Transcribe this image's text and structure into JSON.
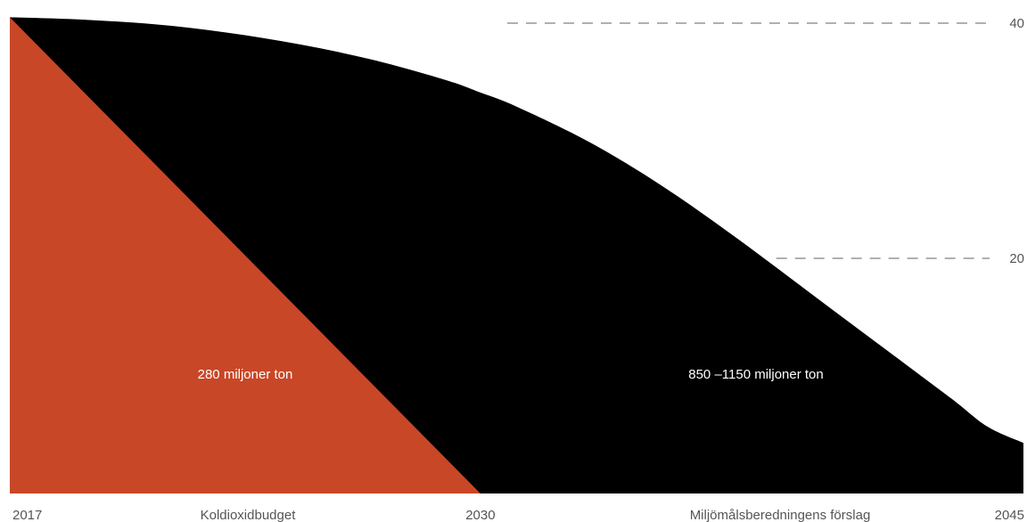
{
  "chart_data": {
    "type": "area",
    "title": "",
    "xlabel": "",
    "ylabel": "",
    "xlim": [
      2017,
      2045
    ],
    "ylim": [
      0,
      42
    ],
    "x_ticks": [
      {
        "value": 2017,
        "label": "2017"
      },
      {
        "value": 2030,
        "label": "2030"
      },
      {
        "value": 2045,
        "label": "2045"
      }
    ],
    "y_ticks": [
      {
        "value": 40,
        "label": "40"
      },
      {
        "value": 20,
        "label": "20"
      }
    ],
    "grid": "dashed reference lines at y ticks",
    "series": [
      {
        "name": "Miljömålsberedningens förslag",
        "color": "#000000",
        "x": [
          2017,
          2019,
          2021,
          2023,
          2025,
          2027,
          2029,
          2030,
          2031,
          2033,
          2035,
          2037,
          2039,
          2041,
          2043,
          2044,
          2045
        ],
        "y": [
          40.5,
          40.3,
          39.9,
          39.2,
          38.2,
          36.9,
          35.2,
          34.1,
          32.9,
          29.9,
          26.2,
          21.9,
          17.3,
          12.7,
          8.1,
          5.7,
          4.3
        ],
        "annotation": "850 –1150 miljoner ton"
      },
      {
        "name": "Koldioxidbudget",
        "color": "#c84727",
        "x": [
          2017,
          2030
        ],
        "y": [
          40.5,
          0
        ],
        "annotation": "280 miljoner ton"
      }
    ]
  }
}
